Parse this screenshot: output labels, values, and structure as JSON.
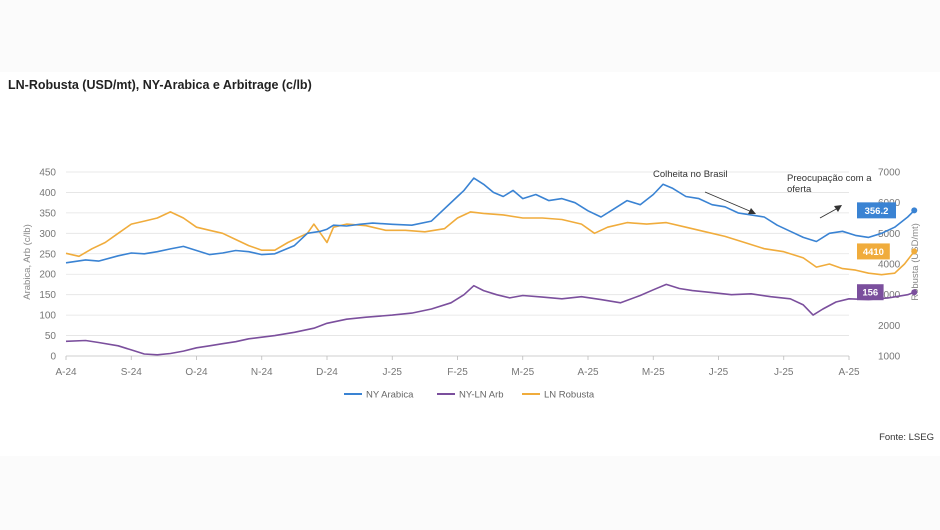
{
  "title": "LN-Robusta (USD/mt), NY-Arabica e Arbitrage (c/lb)",
  "source": "Fonte: LSEG",
  "chart_data": {
    "type": "line",
    "title": "LN-Robusta (USD/mt), NY-Arabica e Arbitrage (c/lb)",
    "x_labels": [
      "A-24",
      "S-24",
      "O-24",
      "N-24",
      "D-24",
      "J-25",
      "F-25",
      "M-25",
      "A-25",
      "M-25",
      "J-25",
      "J-25",
      "A-25"
    ],
    "left_axis": {
      "label": "Arabica, Arb (c/lb)",
      "min": 0,
      "max": 450,
      "ticks": [
        0,
        50,
        100,
        150,
        200,
        250,
        300,
        350,
        400,
        450
      ]
    },
    "right_axis": {
      "label": "Robusta (USD/mt)",
      "min": 1000,
      "max": 7000,
      "ticks": [
        1000,
        2000,
        3000,
        4000,
        5000,
        6000,
        7000
      ]
    },
    "grid": true,
    "legend_position": "bottom-center",
    "series": [
      {
        "name": "NY Arabica",
        "axis": "left",
        "color": "#3a83d3",
        "last_label": "356.2",
        "points": [
          [
            0,
            228
          ],
          [
            0.3,
            235
          ],
          [
            0.5,
            232
          ],
          [
            0.8,
            245
          ],
          [
            1.0,
            252
          ],
          [
            1.2,
            250
          ],
          [
            1.4,
            255
          ],
          [
            1.6,
            262
          ],
          [
            1.8,
            268
          ],
          [
            2.0,
            258
          ],
          [
            2.2,
            248
          ],
          [
            2.4,
            252
          ],
          [
            2.6,
            258
          ],
          [
            2.8,
            255
          ],
          [
            3.0,
            248
          ],
          [
            3.2,
            250
          ],
          [
            3.5,
            270
          ],
          [
            3.7,
            300
          ],
          [
            3.9,
            305
          ],
          [
            4.0,
            310
          ],
          [
            4.1,
            320
          ],
          [
            4.3,
            318
          ],
          [
            4.5,
            322
          ],
          [
            4.7,
            325
          ],
          [
            5.0,
            322
          ],
          [
            5.3,
            320
          ],
          [
            5.6,
            330
          ],
          [
            6.0,
            390
          ],
          [
            6.1,
            405
          ],
          [
            6.25,
            435
          ],
          [
            6.4,
            420
          ],
          [
            6.55,
            400
          ],
          [
            6.7,
            390
          ],
          [
            6.85,
            405
          ],
          [
            7.0,
            385
          ],
          [
            7.2,
            395
          ],
          [
            7.4,
            380
          ],
          [
            7.6,
            385
          ],
          [
            7.8,
            375
          ],
          [
            8.0,
            355
          ],
          [
            8.2,
            340
          ],
          [
            8.4,
            360
          ],
          [
            8.6,
            380
          ],
          [
            8.8,
            370
          ],
          [
            9.0,
            395
          ],
          [
            9.15,
            420
          ],
          [
            9.3,
            410
          ],
          [
            9.5,
            390
          ],
          [
            9.7,
            385
          ],
          [
            9.9,
            370
          ],
          [
            10.1,
            365
          ],
          [
            10.3,
            350
          ],
          [
            10.5,
            345
          ],
          [
            10.7,
            340
          ],
          [
            10.9,
            320
          ],
          [
            11.1,
            305
          ],
          [
            11.3,
            290
          ],
          [
            11.5,
            280
          ],
          [
            11.7,
            300
          ],
          [
            11.9,
            305
          ],
          [
            12.1,
            295
          ],
          [
            12.3,
            290
          ],
          [
            12.5,
            300
          ],
          [
            12.7,
            315
          ],
          [
            12.9,
            340
          ],
          [
            13.0,
            356.2
          ]
        ]
      },
      {
        "name": "NY-LN Arb",
        "axis": "left",
        "color": "#7b4f9d",
        "last_label": "156",
        "points": [
          [
            0,
            36
          ],
          [
            0.3,
            38
          ],
          [
            0.5,
            33
          ],
          [
            0.8,
            25
          ],
          [
            1.0,
            15
          ],
          [
            1.2,
            5
          ],
          [
            1.4,
            3
          ],
          [
            1.6,
            6
          ],
          [
            1.8,
            12
          ],
          [
            2.0,
            20
          ],
          [
            2.2,
            25
          ],
          [
            2.4,
            30
          ],
          [
            2.6,
            35
          ],
          [
            2.8,
            42
          ],
          [
            3.0,
            46
          ],
          [
            3.2,
            50
          ],
          [
            3.5,
            58
          ],
          [
            3.8,
            68
          ],
          [
            4.0,
            80
          ],
          [
            4.3,
            90
          ],
          [
            4.6,
            95
          ],
          [
            5.0,
            100
          ],
          [
            5.3,
            105
          ],
          [
            5.6,
            115
          ],
          [
            5.9,
            130
          ],
          [
            6.1,
            150
          ],
          [
            6.25,
            172
          ],
          [
            6.4,
            160
          ],
          [
            6.6,
            150
          ],
          [
            6.8,
            142
          ],
          [
            7.0,
            148
          ],
          [
            7.3,
            144
          ],
          [
            7.6,
            140
          ],
          [
            7.9,
            145
          ],
          [
            8.2,
            138
          ],
          [
            8.5,
            130
          ],
          [
            8.8,
            148
          ],
          [
            9.0,
            162
          ],
          [
            9.2,
            175
          ],
          [
            9.4,
            165
          ],
          [
            9.6,
            160
          ],
          [
            9.9,
            155
          ],
          [
            10.2,
            150
          ],
          [
            10.5,
            152
          ],
          [
            10.8,
            145
          ],
          [
            11.1,
            140
          ],
          [
            11.3,
            125
          ],
          [
            11.45,
            100
          ],
          [
            11.6,
            115
          ],
          [
            11.8,
            132
          ],
          [
            12.0,
            140
          ],
          [
            12.3,
            138
          ],
          [
            12.6,
            142
          ],
          [
            12.9,
            150
          ],
          [
            13.0,
            156
          ]
        ]
      },
      {
        "name": "LN Robusta",
        "axis": "right",
        "color": "#f0ac3c",
        "last_label": "4410",
        "points": [
          [
            0,
            4350
          ],
          [
            0.2,
            4250
          ],
          [
            0.4,
            4500
          ],
          [
            0.6,
            4700
          ],
          [
            0.8,
            5000
          ],
          [
            1.0,
            5300
          ],
          [
            1.2,
            5400
          ],
          [
            1.4,
            5500
          ],
          [
            1.6,
            5700
          ],
          [
            1.8,
            5500
          ],
          [
            2.0,
            5200
          ],
          [
            2.2,
            5100
          ],
          [
            2.4,
            5000
          ],
          [
            2.6,
            4800
          ],
          [
            2.8,
            4600
          ],
          [
            3.0,
            4450
          ],
          [
            3.2,
            4450
          ],
          [
            3.4,
            4700
          ],
          [
            3.7,
            5000
          ],
          [
            3.8,
            5300
          ],
          [
            3.9,
            5000
          ],
          [
            4.0,
            4700
          ],
          [
            4.1,
            5200
          ],
          [
            4.3,
            5300
          ],
          [
            4.6,
            5250
          ],
          [
            4.9,
            5100
          ],
          [
            5.2,
            5100
          ],
          [
            5.5,
            5050
          ],
          [
            5.8,
            5150
          ],
          [
            6.0,
            5500
          ],
          [
            6.2,
            5700
          ],
          [
            6.4,
            5650
          ],
          [
            6.7,
            5600
          ],
          [
            7.0,
            5500
          ],
          [
            7.3,
            5500
          ],
          [
            7.6,
            5450
          ],
          [
            7.9,
            5300
          ],
          [
            8.1,
            5000
          ],
          [
            8.3,
            5200
          ],
          [
            8.6,
            5350
          ],
          [
            8.9,
            5300
          ],
          [
            9.2,
            5350
          ],
          [
            9.5,
            5200
          ],
          [
            9.8,
            5050
          ],
          [
            10.1,
            4900
          ],
          [
            10.4,
            4700
          ],
          [
            10.7,
            4500
          ],
          [
            11.0,
            4400
          ],
          [
            11.3,
            4200
          ],
          [
            11.5,
            3900
          ],
          [
            11.7,
            4000
          ],
          [
            11.9,
            3850
          ],
          [
            12.1,
            3800
          ],
          [
            12.3,
            3700
          ],
          [
            12.5,
            3650
          ],
          [
            12.7,
            3700
          ],
          [
            12.85,
            4000
          ],
          [
            13.0,
            4410
          ]
        ]
      }
    ],
    "annotations": [
      {
        "text": "Colheita no Brasil"
      },
      {
        "text_line1": "Preocupação com a",
        "text_line2": "oferta"
      }
    ]
  }
}
